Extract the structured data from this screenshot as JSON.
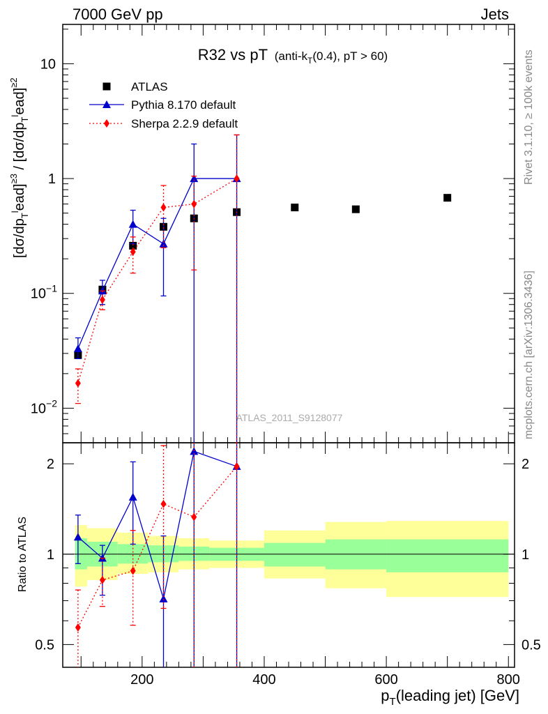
{
  "header": {
    "left": "7000 GeV pp",
    "right": "Jets"
  },
  "side": {
    "top": "Rivet 3.1.10, ≥ 100k events",
    "bottom": "mcplots.cern.ch [arXiv:1306.3436]"
  },
  "watermark": "ATLAS_2011_S9128077",
  "colors": {
    "atlas": "#000000",
    "pythia": "#0000cc",
    "sherpa": "#ff0000",
    "band_inner": "#99ff99",
    "band_outer": "#ffff99"
  },
  "chart_data": [
    {
      "type": "scatter",
      "title_main": "R32 vs pT",
      "title_sub": "(anti-k",
      "title_sub_sub": "T",
      "title_sub_rest": "(0.4), pT > 60)",
      "y_scale": "log",
      "ylim": [
        0.005,
        22
      ],
      "xlim": [
        70,
        810
      ],
      "legend_position": "top-left",
      "yticks": [
        {
          "value": 0.01,
          "base": "10",
          "exp": "−2"
        },
        {
          "value": 0.1,
          "base": "10",
          "exp": "−1"
        },
        {
          "value": 1,
          "base": "1",
          "exp": ""
        },
        {
          "value": 10,
          "base": "10",
          "exp": ""
        }
      ],
      "series": [
        {
          "name": "ATLAS",
          "marker": "square",
          "points": [
            {
              "x": 95,
              "y": 0.029
            },
            {
              "x": 135,
              "y": 0.108
            },
            {
              "x": 185,
              "y": 0.26
            },
            {
              "x": 235,
              "y": 0.38
            },
            {
              "x": 285,
              "y": 0.45
            },
            {
              "x": 355,
              "y": 0.51
            },
            {
              "x": 450,
              "y": 0.56
            },
            {
              "x": 550,
              "y": 0.54
            },
            {
              "x": 700,
              "y": 0.68
            }
          ]
        },
        {
          "name": "Pythia 8.170 default",
          "marker": "triangle",
          "line": "solid",
          "points": [
            {
              "x": 95,
              "y": 0.033,
              "lo": 0.027,
              "hi": 0.041
            },
            {
              "x": 135,
              "y": 0.105,
              "lo": 0.08,
              "hi": 0.13
            },
            {
              "x": 185,
              "y": 0.4,
              "lo": 0.27,
              "hi": 0.53
            },
            {
              "x": 235,
              "y": 0.27,
              "lo": 0.095,
              "hi": 0.45
            },
            {
              "x": 285,
              "y": 1.0,
              "lo": 0.0001,
              "hi": 2.0
            },
            {
              "x": 355,
              "y": 1.0,
              "lo": 0.0001,
              "hi": 2.4
            }
          ]
        },
        {
          "name": "Sherpa 2.2.9 default",
          "marker": "diamond",
          "line": "dotted",
          "points": [
            {
              "x": 95,
              "y": 0.0165,
              "lo": 0.011,
              "hi": 0.022
            },
            {
              "x": 135,
              "y": 0.088,
              "lo": 0.072,
              "hi": 0.105
            },
            {
              "x": 185,
              "y": 0.23,
              "lo": 0.15,
              "hi": 0.31
            },
            {
              "x": 235,
              "y": 0.56,
              "lo": 0.25,
              "hi": 0.87
            },
            {
              "x": 285,
              "y": 0.6,
              "lo": 0.16,
              "hi": 1.05
            },
            {
              "x": 355,
              "y": 1.0,
              "lo": 0.0001,
              "hi": 2.4
            }
          ]
        }
      ]
    },
    {
      "type": "scatter",
      "ylabel": "Ratio to ATLAS",
      "xlabel_main": "p",
      "xlabel_sub": "T",
      "xlabel_rest": "(leading jet) [GeV]",
      "y_scale": "log",
      "ylim": [
        0.42,
        2.35
      ],
      "xlim": [
        70,
        810
      ],
      "yticks": [
        0.5,
        1,
        2
      ],
      "xticks": [
        200,
        400,
        600,
        800
      ],
      "reference": 1,
      "bands": [
        {
          "x0": 90,
          "x1": 110,
          "inner": [
            0.89,
            1.13
          ],
          "outer": [
            0.78,
            1.25
          ]
        },
        {
          "x0": 110,
          "x1": 160,
          "inner": [
            0.91,
            1.1
          ],
          "outer": [
            0.82,
            1.22
          ]
        },
        {
          "x0": 160,
          "x1": 210,
          "inner": [
            0.93,
            1.08
          ],
          "outer": [
            0.86,
            1.18
          ]
        },
        {
          "x0": 210,
          "x1": 260,
          "inner": [
            0.94,
            1.07
          ],
          "outer": [
            0.87,
            1.15
          ]
        },
        {
          "x0": 260,
          "x1": 310,
          "inner": [
            0.95,
            1.06
          ],
          "outer": [
            0.89,
            1.13
          ]
        },
        {
          "x0": 310,
          "x1": 400,
          "inner": [
            0.95,
            1.05
          ],
          "outer": [
            0.9,
            1.11
          ]
        },
        {
          "x0": 400,
          "x1": 500,
          "inner": [
            0.91,
            1.09
          ],
          "outer": [
            0.83,
            1.2
          ]
        },
        {
          "x0": 500,
          "x1": 600,
          "inner": [
            0.89,
            1.12
          ],
          "outer": [
            0.77,
            1.28
          ]
        },
        {
          "x0": 600,
          "x1": 800,
          "inner": [
            0.87,
            1.12
          ],
          "outer": [
            0.72,
            1.29
          ]
        }
      ],
      "series": [
        {
          "name": "Pythia 8.170 default",
          "points": [
            {
              "x": 95,
              "y": 1.14,
              "lo": 0.93,
              "hi": 1.35
            },
            {
              "x": 135,
              "y": 0.97,
              "lo": 0.73,
              "hi": 1.07
            },
            {
              "x": 185,
              "y": 1.55,
              "lo": 1.08,
              "hi": 2.03
            },
            {
              "x": 235,
              "y": 0.71,
              "lo": 0.001,
              "hi": 1.15
            },
            {
              "x": 285,
              "y": 2.2,
              "lo": 0.001,
              "hi": 2.35
            },
            {
              "x": 355,
              "y": 1.96,
              "lo": 0.001,
              "hi": 2.35
            }
          ]
        },
        {
          "name": "Sherpa 2.2.9 default",
          "points": [
            {
              "x": 95,
              "y": 0.57,
              "lo": 0.001,
              "hi": 0.76
            },
            {
              "x": 135,
              "y": 0.82,
              "lo": 0.67,
              "hi": 0.97
            },
            {
              "x": 185,
              "y": 0.88,
              "lo": 0.58,
              "hi": 1.2
            },
            {
              "x": 235,
              "y": 1.47,
              "lo": 0.66,
              "hi": 2.3
            },
            {
              "x": 285,
              "y": 1.33,
              "lo": 0.001,
              "hi": 2.35
            },
            {
              "x": 355,
              "y": 1.96,
              "lo": 0.001,
              "hi": 2.35
            }
          ]
        }
      ]
    }
  ]
}
